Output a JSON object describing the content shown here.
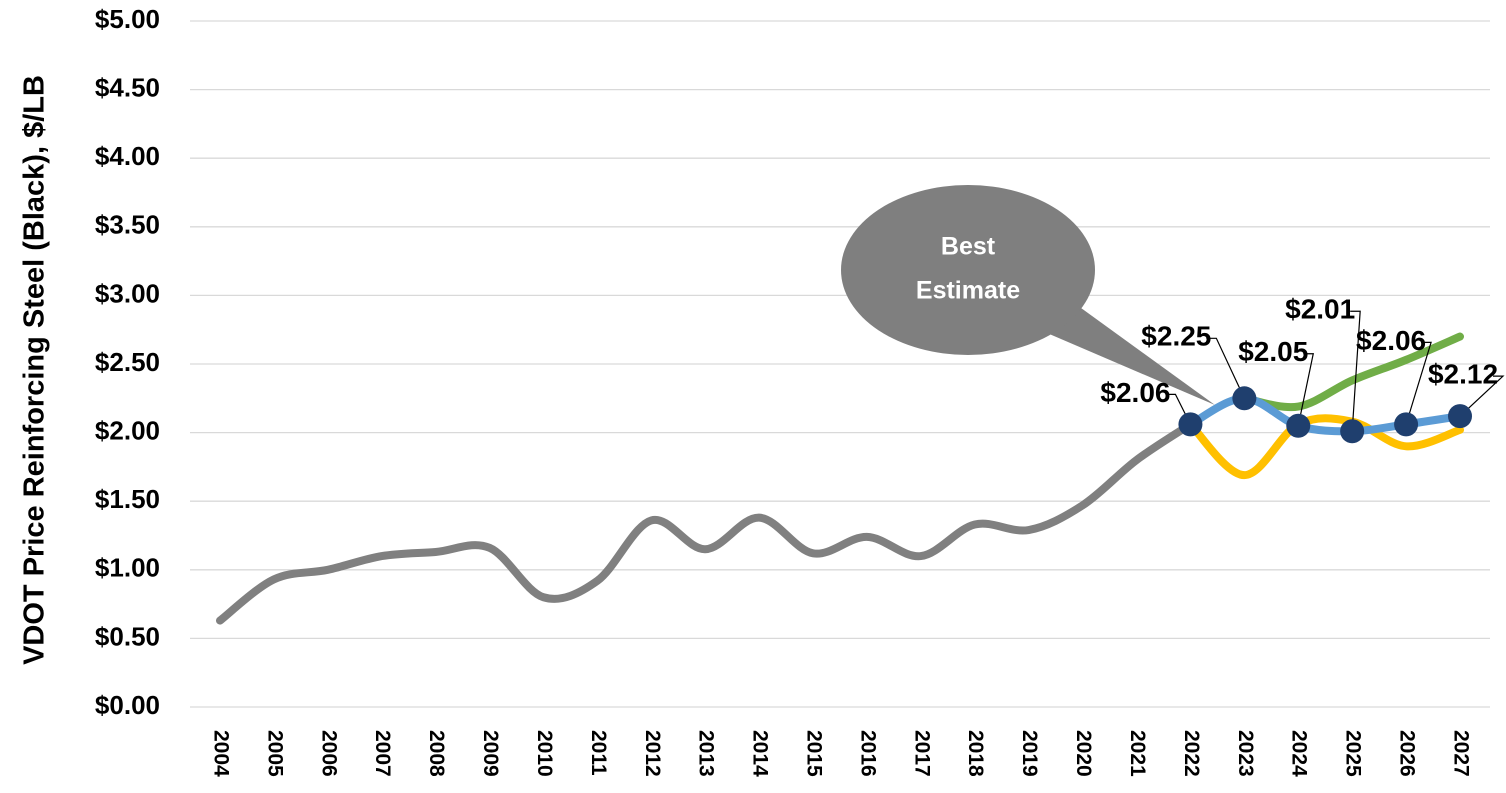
{
  "chart_data": {
    "type": "line",
    "y_axis_label": "VDOT Price Reinforcing Steel (Black), $/LB",
    "annotation": [
      "Best",
      "Estimate"
    ],
    "categories": [
      "2004",
      "2005",
      "2006",
      "2007",
      "2008",
      "2009",
      "2010",
      "2011",
      "2012",
      "2013",
      "2014",
      "2015",
      "2016",
      "2017",
      "2018",
      "2019",
      "2020",
      "2021",
      "2022",
      "2023",
      "2024",
      "2025",
      "2026",
      "2027"
    ],
    "ylim": [
      0,
      5
    ],
    "yticks": [
      {
        "value": 0,
        "label": "$0.00"
      },
      {
        "value": 0.5,
        "label": "$0.50"
      },
      {
        "value": 1,
        "label": "$1.00"
      },
      {
        "value": 1.5,
        "label": "$1.50"
      },
      {
        "value": 2,
        "label": "$2.00"
      },
      {
        "value": 2.5,
        "label": "$2.50"
      },
      {
        "value": 3,
        "label": "$3.00"
      },
      {
        "value": 3.5,
        "label": "$3.50"
      },
      {
        "value": 4,
        "label": "$4.00"
      },
      {
        "value": 4.5,
        "label": "$4.50"
      },
      {
        "value": 5,
        "label": "$5.00"
      }
    ],
    "grid": true,
    "series": [
      {
        "color": "#808080",
        "values": [
          0.63,
          0.93,
          1.0,
          1.1,
          1.13,
          1.16,
          0.8,
          0.92,
          1.36,
          1.15,
          1.38,
          1.12,
          1.24,
          1.1,
          1.33,
          1.29,
          1.47,
          1.8,
          2.06,
          null,
          null,
          null,
          null,
          null
        ]
      },
      {
        "color": "#ffc000",
        "values": [
          null,
          null,
          null,
          null,
          null,
          null,
          null,
          null,
          null,
          null,
          null,
          null,
          null,
          null,
          null,
          null,
          null,
          null,
          2.06,
          1.69,
          2.06,
          2.08,
          1.9,
          2.02
        ]
      },
      {
        "color": "#70ad47",
        "values": [
          null,
          null,
          null,
          null,
          null,
          null,
          null,
          null,
          null,
          null,
          null,
          null,
          null,
          null,
          null,
          null,
          null,
          null,
          null,
          2.25,
          2.19,
          2.38,
          2.53,
          2.7
        ]
      },
      {
        "color": "#5b9bd5",
        "marker_color": "#1f3f6e",
        "values": [
          null,
          null,
          null,
          null,
          null,
          null,
          null,
          null,
          null,
          null,
          null,
          null,
          null,
          null,
          null,
          null,
          null,
          null,
          2.06,
          2.25,
          2.05,
          2.01,
          2.06,
          2.12
        ],
        "value_labels": [
          null,
          null,
          null,
          null,
          null,
          null,
          null,
          null,
          null,
          null,
          null,
          null,
          null,
          null,
          null,
          null,
          null,
          null,
          "$2.06",
          "$2.25",
          "$2.05",
          "$2.01",
          "$2.06",
          "$2.12"
        ]
      }
    ]
  }
}
